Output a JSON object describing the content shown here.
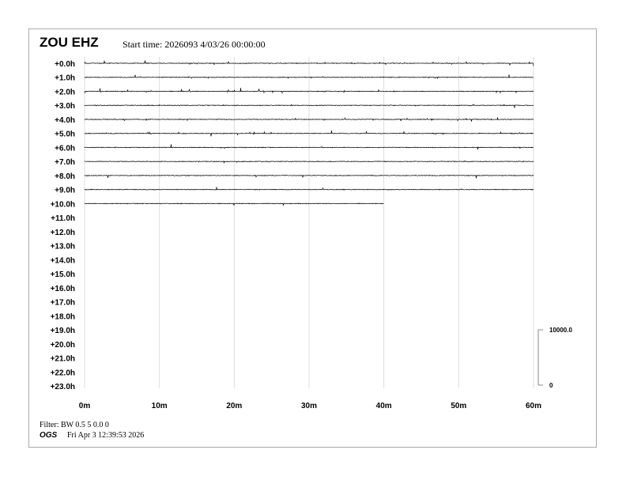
{
  "header": {
    "station": "ZOU EHZ",
    "start_time": "Start time: 2026093  4/03/26 00:00:00"
  },
  "footer": {
    "filter": "Filter: BW 0.5 5 0.0 0",
    "agency": "OGS",
    "generated": "Fri Apr  3 12:39:53 2026"
  },
  "chart_data": {
    "type": "line",
    "subtype": "helicorder",
    "row_labels": [
      "+0.0h",
      "+1.0h",
      "+2.0h",
      "+3.0h",
      "+4.0h",
      "+5.0h",
      "+6.0h",
      "+7.0h",
      "+8.0h",
      "+9.0h",
      "+10.0h",
      "+11.0h",
      "+12.0h",
      "+13.0h",
      "+14.0h",
      "+15.0h",
      "+16.0h",
      "+17.0h",
      "+18.0h",
      "+19.0h",
      "+20.0h",
      "+21.0h",
      "+22.0h",
      "+23.0h"
    ],
    "x_ticks": [
      "0m",
      "10m",
      "20m",
      "30m",
      "40m",
      "50m",
      "60m"
    ],
    "xlim": [
      0,
      60
    ],
    "grid": true,
    "trace_color": "#000000",
    "trace_end_minutes": [
      60,
      60,
      60,
      60,
      60,
      60,
      60,
      60,
      60,
      60,
      40
    ],
    "trace_activity": [
      0.6,
      0.6,
      0.9,
      0.5,
      0.7,
      0.8,
      0.5,
      0.35,
      0.3,
      0.25,
      0.25
    ],
    "scale": {
      "top_label": "10000.0",
      "bottom_label": "0"
    }
  }
}
